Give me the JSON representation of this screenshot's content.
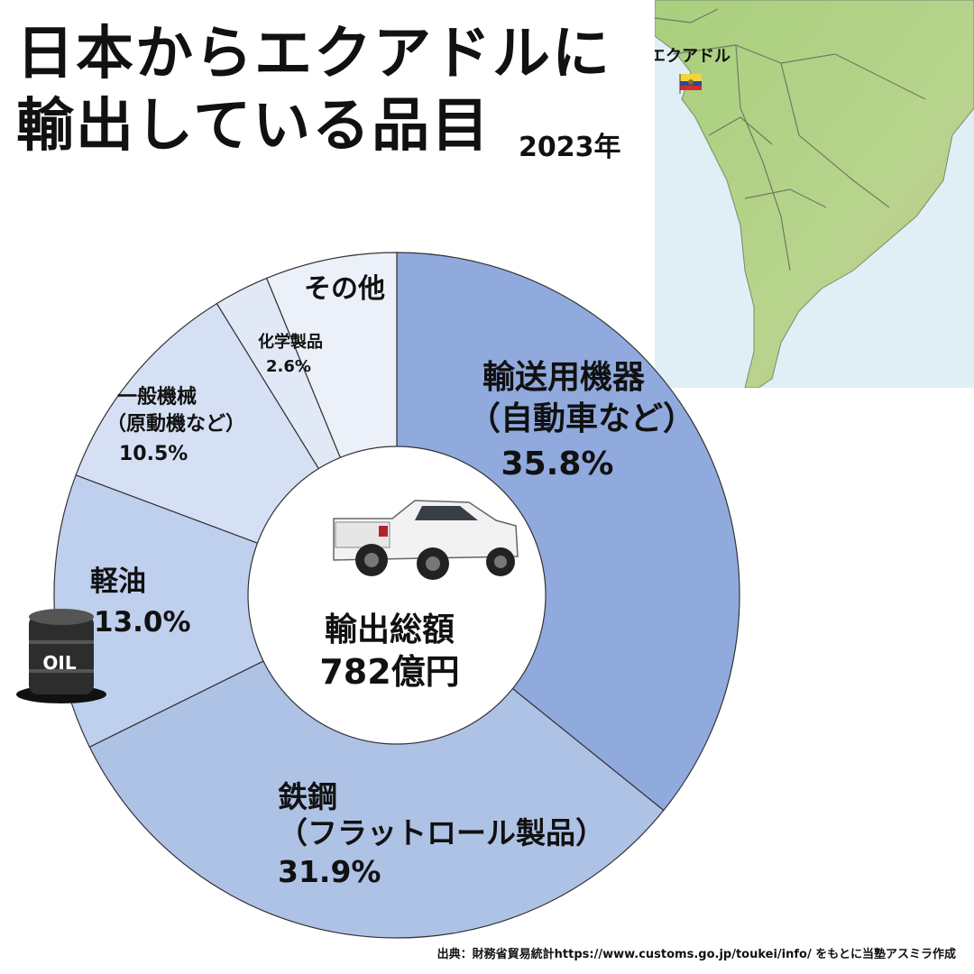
{
  "header": {
    "title_line1": "日本からエクアドルに",
    "title_line2": "輸出している品目",
    "year": "2023年"
  },
  "map": {
    "country_label": "エクアドル",
    "icon": "south-america-map-icon",
    "flag_icon": "ecuador-flag-icon"
  },
  "center": {
    "label": "輸出総額",
    "value": "782億円",
    "icon": "pickup-truck-icon"
  },
  "oil_icon_text": "OIL",
  "colors": {
    "transport": "#90aade",
    "steel": "#aec2e6",
    "diesel": "#bfcfee",
    "machinery": "#d5e0f4",
    "chemical": "#e2e9f6",
    "other": "#ecf1f9"
  },
  "chart_data": {
    "type": "pie",
    "title": "日本からエクアドルに輸出している品目",
    "categories": [
      "輸送用機器（自動車など）",
      "鉄鋼（フラットロール製品）",
      "軽油",
      "一般機械（原動機など）",
      "化学製品",
      "その他"
    ],
    "values": [
      35.8,
      31.9,
      13.0,
      10.5,
      2.6,
      6.2
    ],
    "unit": "%",
    "total": "782億円",
    "labels": [
      {
        "lines": [
          "輸送用機器",
          "（自動車など）"
        ],
        "pct": "35.8%"
      },
      {
        "lines": [
          "鉄鋼",
          "（フラットロール製品）"
        ],
        "pct": "31.9%"
      },
      {
        "lines": [
          "軽油"
        ],
        "pct": "13.0%"
      },
      {
        "lines": [
          "一般機械",
          "（原動機など）"
        ],
        "pct": "10.5%"
      },
      {
        "lines": [
          "化学製品"
        ],
        "pct": "2.6%"
      },
      {
        "lines": [
          "その他"
        ],
        "pct": ""
      }
    ]
  },
  "footer": {
    "source": "出典：財務省貿易統計https://www.customs.go.jp/toukei/info/ をもとに当塾アスミラ作成"
  }
}
